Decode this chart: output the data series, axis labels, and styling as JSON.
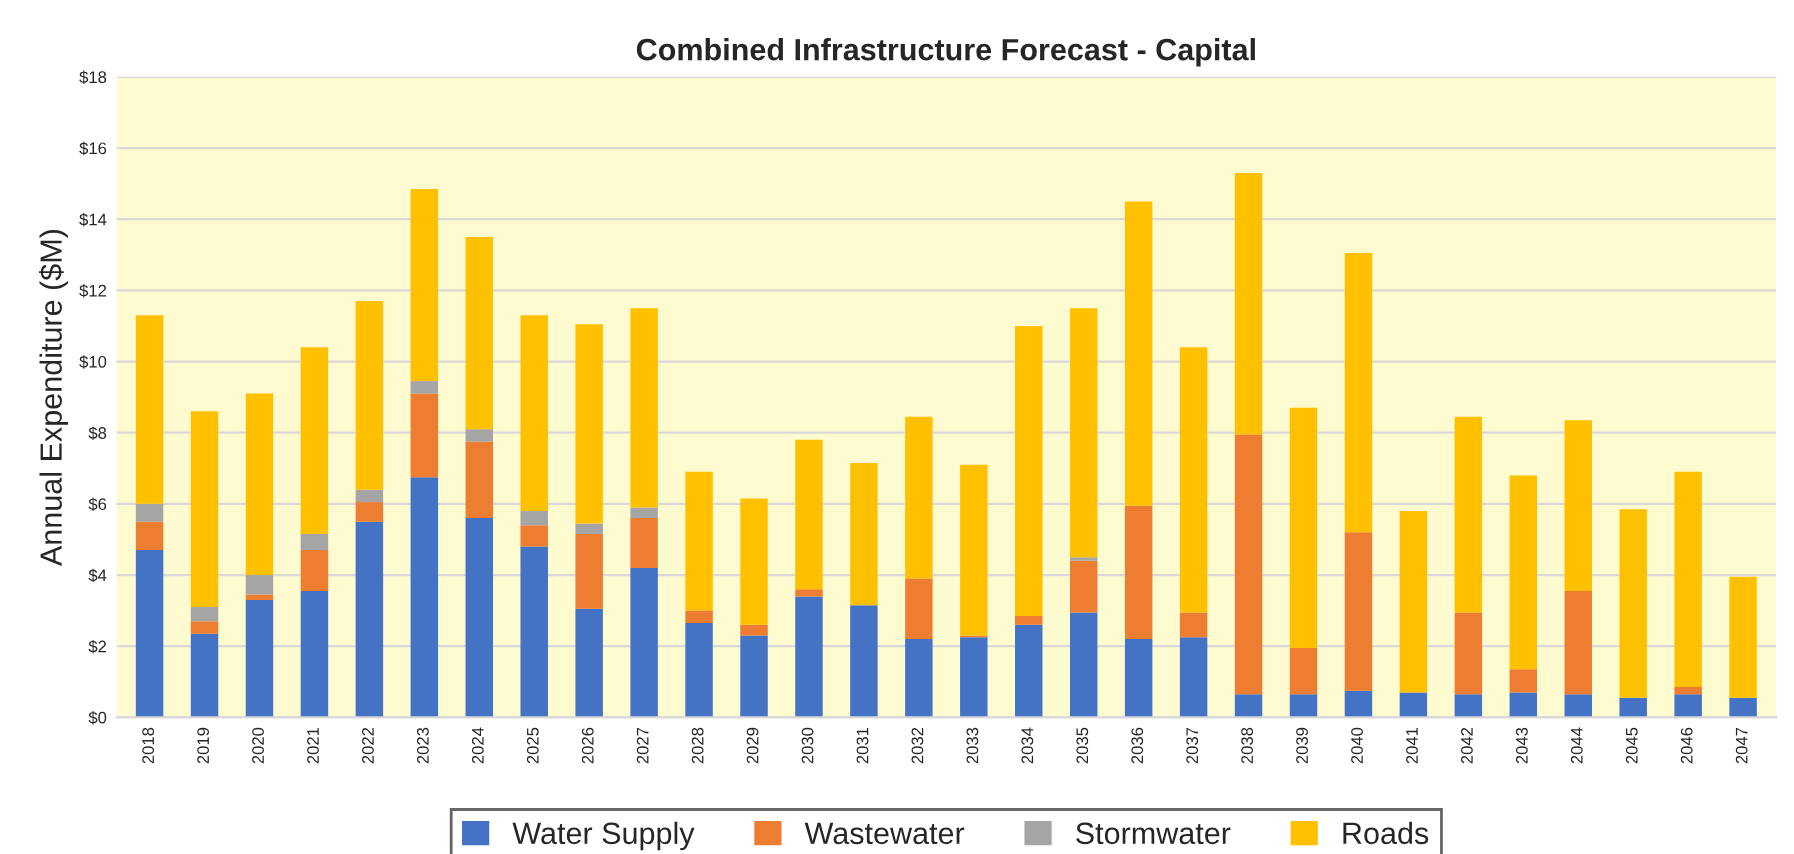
{
  "chart_data": {
    "type": "bar",
    "stacked": true,
    "title": "Combined Infrastructure Forecast - Capital",
    "ylabel": "Annual Expenditure ($M)",
    "categories": [
      "2018",
      "2019",
      "2020",
      "2021",
      "2022",
      "2023",
      "2024",
      "2025",
      "2026",
      "2027",
      "2028",
      "2029",
      "2030",
      "2031",
      "2032",
      "2033",
      "2034",
      "2035",
      "2036",
      "2037",
      "2038",
      "2039",
      "2040",
      "2041",
      "2042",
      "2043",
      "2044",
      "2045",
      "2046",
      "2047"
    ],
    "series": [
      {
        "name": "Water Supply",
        "color": "#4472c4",
        "values": [
          4.7,
          2.35,
          3.3,
          3.55,
          5.5,
          6.75,
          5.6,
          4.8,
          3.05,
          4.2,
          2.65,
          2.3,
          3.4,
          3.15,
          2.2,
          2.25,
          2.6,
          2.95,
          2.2,
          2.25,
          0.65,
          0.65,
          0.75,
          0.7,
          0.65,
          0.7,
          0.65,
          0.55,
          0.65,
          0.55
        ]
      },
      {
        "name": "Wastewater",
        "color": "#ed7d31",
        "values": [
          0.8,
          0.35,
          0.15,
          1.15,
          0.55,
          2.35,
          2.15,
          0.6,
          2.1,
          1.4,
          0.35,
          0.3,
          0.2,
          0,
          1.7,
          0.05,
          0.25,
          1.45,
          3.75,
          0.7,
          7.3,
          1.3,
          4.45,
          0,
          2.3,
          0.65,
          2.9,
          0,
          0.2,
          0
        ]
      },
      {
        "name": "Stormwater",
        "color": "#a5a5a5",
        "values": [
          0.5,
          0.4,
          0.55,
          0.45,
          0.35,
          0.35,
          0.35,
          0.4,
          0.3,
          0.3,
          0,
          0,
          0,
          0,
          0,
          0,
          0,
          0.1,
          0,
          0,
          0,
          0,
          0,
          0,
          0,
          0,
          0,
          0,
          0,
          0
        ]
      },
      {
        "name": "Roads",
        "color": "#ffc000",
        "values": [
          5.3,
          5.5,
          5.1,
          5.25,
          5.3,
          5.4,
          5.4,
          5.5,
          5.6,
          5.6,
          3.9,
          3.55,
          4.2,
          4.0,
          4.55,
          4.8,
          8.15,
          7.0,
          8.55,
          7.45,
          7.35,
          6.75,
          7.85,
          5.1,
          5.5,
          5.45,
          4.8,
          5.3,
          6.05,
          3.4
        ]
      }
    ],
    "ylim": [
      0,
      18
    ],
    "yticks": [
      {
        "value": 0,
        "label": "$0"
      },
      {
        "value": 2,
        "label": "$2"
      },
      {
        "value": 4,
        "label": "$4"
      },
      {
        "value": 6,
        "label": "$6"
      },
      {
        "value": 8,
        "label": "$8"
      },
      {
        "value": 10,
        "label": "$10"
      },
      {
        "value": 12,
        "label": "$12"
      },
      {
        "value": 14,
        "label": "$14"
      },
      {
        "value": 16,
        "label": "$16"
      },
      {
        "value": 18,
        "label": "$18"
      }
    ],
    "grid": "y",
    "legend": "bottom"
  }
}
